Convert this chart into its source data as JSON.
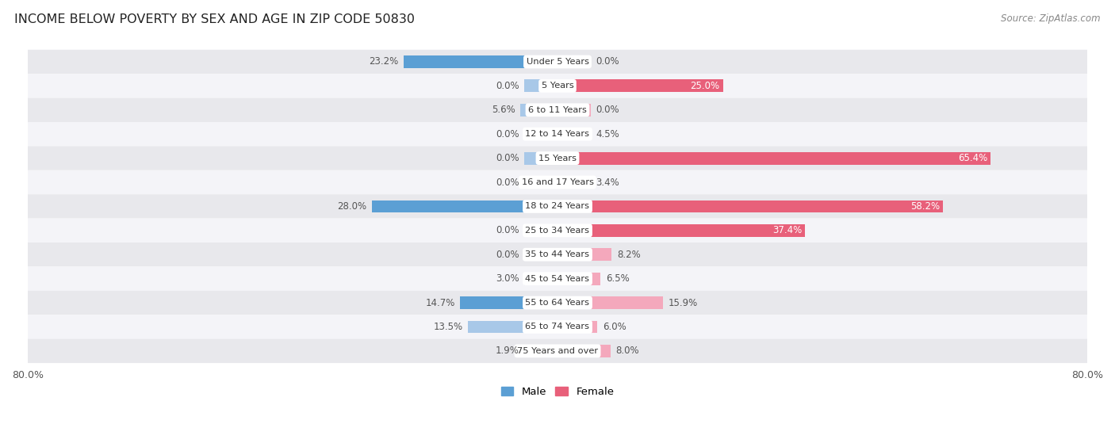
{
  "title": "INCOME BELOW POVERTY BY SEX AND AGE IN ZIP CODE 50830",
  "source": "Source: ZipAtlas.com",
  "categories": [
    "Under 5 Years",
    "5 Years",
    "6 to 11 Years",
    "12 to 14 Years",
    "15 Years",
    "16 and 17 Years",
    "18 to 24 Years",
    "25 to 34 Years",
    "35 to 44 Years",
    "45 to 54 Years",
    "55 to 64 Years",
    "65 to 74 Years",
    "75 Years and over"
  ],
  "male": [
    23.2,
    0.0,
    5.6,
    0.0,
    0.0,
    0.0,
    28.0,
    0.0,
    0.0,
    3.0,
    14.7,
    13.5,
    1.9
  ],
  "female": [
    0.0,
    25.0,
    0.0,
    4.5,
    65.4,
    3.4,
    58.2,
    37.4,
    8.2,
    6.5,
    15.9,
    6.0,
    8.0
  ],
  "male_color_dark": "#5b9fd4",
  "male_color_light": "#a8c8e8",
  "female_color_dark": "#e8607a",
  "female_color_light": "#f4a8bc",
  "row_color_dark": "#e8e8ec",
  "row_color_light": "#f4f4f8",
  "axis_max": 80.0,
  "min_bar": 2.0,
  "placeholder_bar": 5.0
}
